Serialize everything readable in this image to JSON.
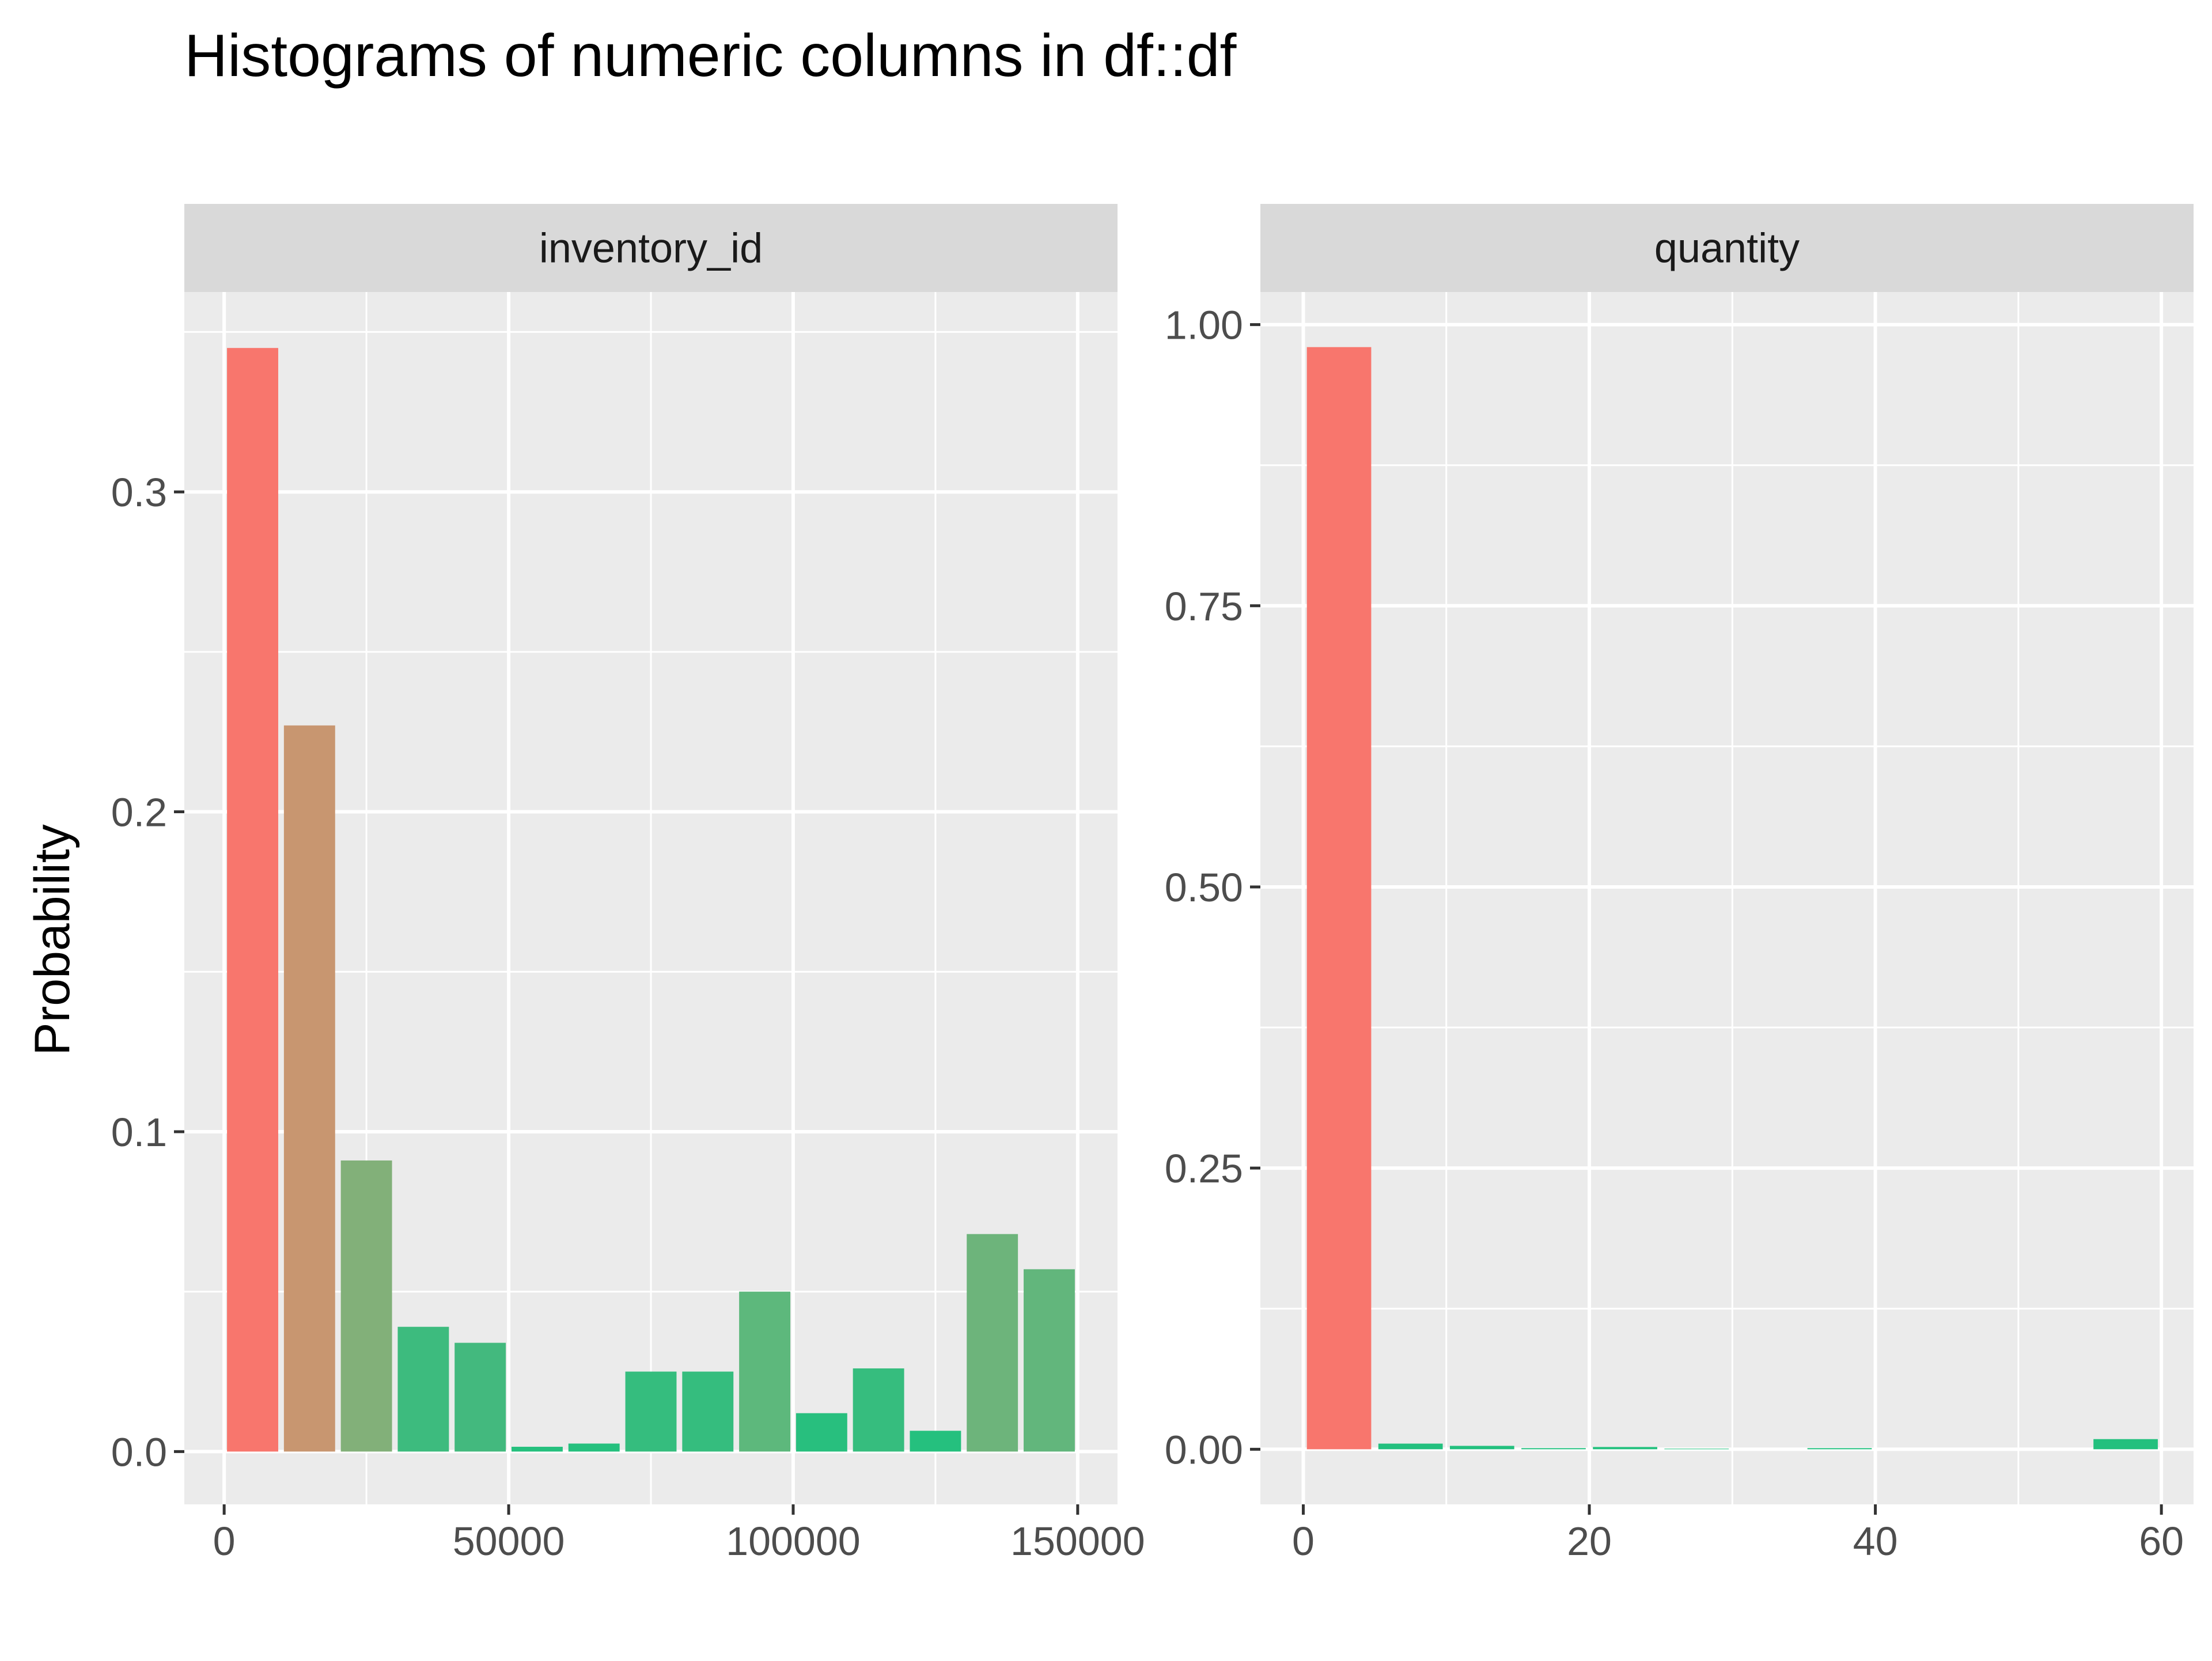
{
  "chart_data": {
    "type": "bar",
    "title": "Histograms of numeric columns in df::df",
    "ylabel": "Probability",
    "xlabel": "",
    "grid": true,
    "legend": "none",
    "colors": {
      "panel_background": "#ebebeb",
      "strip_background": "#d9d9d9",
      "gridline": "#ffffff",
      "low_bar": "#f8766d",
      "high_bar": "#23c07e"
    },
    "panels": [
      {
        "facet": "inventory_id",
        "xlim": [
          -7000,
          157000
        ],
        "ylim": [
          -0.0165,
          0.3625
        ],
        "xticks": [
          0,
          50000,
          100000,
          150000
        ],
        "xtick_labels": [
          "0",
          "50000",
          "100000",
          "150000"
        ],
        "yticks": [
          0.0,
          0.1,
          0.2,
          0.3
        ],
        "ytick_labels": [
          "0.0",
          "0.1",
          "0.2",
          "0.3"
        ],
        "yminor": [
          0.05,
          0.15,
          0.25,
          0.35
        ],
        "bin_width": 10000,
        "bins": [
          {
            "x": 5000,
            "value": 0.345,
            "color": "#f8766d"
          },
          {
            "x": 15000,
            "value": 0.227,
            "color": "#c89670"
          },
          {
            "x": 25000,
            "value": 0.091,
            "color": "#82b079"
          },
          {
            "x": 35000,
            "value": 0.039,
            "color": "#3dbb7e"
          },
          {
            "x": 45000,
            "value": 0.034,
            "color": "#43b97e"
          },
          {
            "x": 55000,
            "value": 0.0015,
            "color": "#25c07e"
          },
          {
            "x": 65000,
            "value": 0.0025,
            "color": "#25c07e"
          },
          {
            "x": 75000,
            "value": 0.025,
            "color": "#35bd7e"
          },
          {
            "x": 85000,
            "value": 0.025,
            "color": "#35bd7e"
          },
          {
            "x": 95000,
            "value": 0.05,
            "color": "#5db87c"
          },
          {
            "x": 105000,
            "value": 0.012,
            "color": "#28bf7e"
          },
          {
            "x": 115000,
            "value": 0.026,
            "color": "#36bd7e"
          },
          {
            "x": 125000,
            "value": 0.0065,
            "color": "#25c07e"
          },
          {
            "x": 135000,
            "value": 0.068,
            "color": "#6db47b"
          },
          {
            "x": 145000,
            "value": 0.057,
            "color": "#62b67c"
          }
        ]
      },
      {
        "facet": "quantity",
        "xlim": [
          -3,
          62.25
        ],
        "ylim": [
          -0.049,
          1.029
        ],
        "xticks": [
          0,
          20,
          40,
          60
        ],
        "xtick_labels": [
          "0",
          "20",
          "40",
          "60"
        ],
        "yticks": [
          0.0,
          0.25,
          0.5,
          0.75,
          1.0
        ],
        "ytick_labels": [
          "0.00",
          "0.25",
          "0.50",
          "0.75",
          "1.00"
        ],
        "yminor": [
          0.125,
          0.375,
          0.625,
          0.875
        ],
        "xminor": [
          10,
          30,
          50
        ],
        "bin_width": 5,
        "bins": [
          {
            "x": 2.5,
            "value": 0.98,
            "color": "#f8766d"
          },
          {
            "x": 7.5,
            "value": 0.005,
            "color": "#23c07e"
          },
          {
            "x": 12.5,
            "value": 0.003,
            "color": "#23c07e"
          },
          {
            "x": 17.5,
            "value": 0.001,
            "color": "#23c07e"
          },
          {
            "x": 22.5,
            "value": 0.002,
            "color": "#23c07e"
          },
          {
            "x": 27.5,
            "value": 0.0005,
            "color": "#23c07e"
          },
          {
            "x": 32.5,
            "value": 0.0,
            "color": "#23c07e"
          },
          {
            "x": 37.5,
            "value": 0.001,
            "color": "#23c07e"
          },
          {
            "x": 42.5,
            "value": 0.0,
            "color": "#23c07e"
          },
          {
            "x": 47.5,
            "value": 0.0,
            "color": "#23c07e"
          },
          {
            "x": 52.5,
            "value": 0.0,
            "color": "#23c07e"
          },
          {
            "x": 57.5,
            "value": 0.009,
            "color": "#23c07e"
          }
        ]
      }
    ]
  }
}
